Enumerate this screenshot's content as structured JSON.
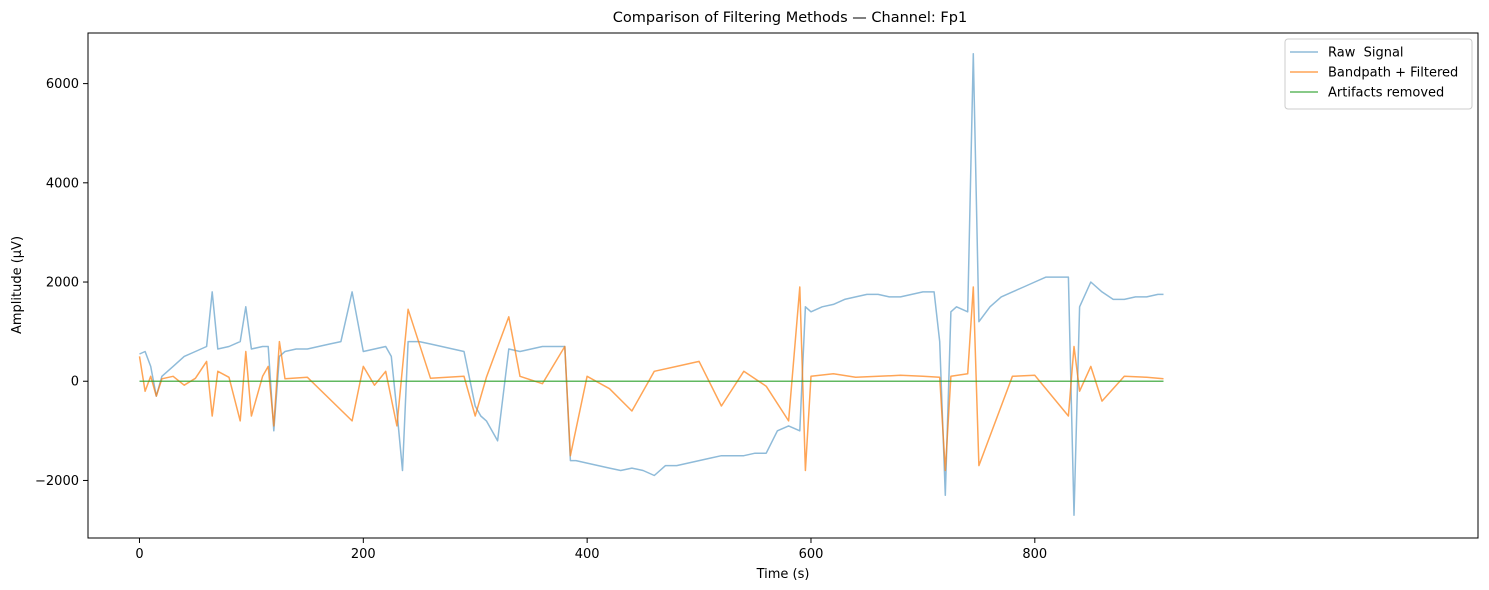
{
  "chart_data": {
    "type": "line",
    "title": "Comparison of Filtering Methods — Channel: Fp1",
    "xlabel": "Time (s)",
    "ylabel": "Amplitude (µV)",
    "xlim": [
      -46,
      1196
    ],
    "ylim": [
      -3160,
      7020
    ],
    "xticks": [
      0,
      200,
      400,
      600,
      800
    ],
    "xtick_labels": [
      "0",
      "200",
      "400",
      "600",
      "800"
    ],
    "yticks": [
      -2000,
      0,
      2000,
      4000,
      6000
    ],
    "ytick_labels": [
      "−2000",
      "0",
      "2000",
      "4000",
      "6000"
    ],
    "grid": false,
    "legend_position": "top-right",
    "series": [
      {
        "name": "Raw  Signal",
        "color": "#1f77b4",
        "alpha": 0.5,
        "x": [
          0,
          5,
          10,
          15,
          20,
          30,
          40,
          50,
          60,
          65,
          70,
          80,
          90,
          95,
          100,
          110,
          115,
          120,
          125,
          130,
          140,
          150,
          160,
          170,
          180,
          190,
          200,
          210,
          220,
          225,
          230,
          235,
          240,
          250,
          260,
          270,
          280,
          290,
          300,
          305,
          310,
          320,
          330,
          340,
          350,
          360,
          370,
          380,
          385,
          390,
          400,
          410,
          420,
          430,
          440,
          450,
          460,
          470,
          480,
          490,
          500,
          510,
          520,
          530,
          540,
          550,
          560,
          570,
          580,
          590,
          595,
          600,
          610,
          620,
          630,
          640,
          650,
          660,
          670,
          680,
          690,
          700,
          710,
          715,
          720,
          725,
          730,
          740,
          745,
          750,
          760,
          770,
          780,
          790,
          800,
          810,
          820,
          830,
          835,
          840,
          850,
          860,
          870,
          880,
          890,
          900,
          910,
          915
        ],
        "y": [
          550,
          600,
          300,
          -300,
          100,
          300,
          500,
          600,
          700,
          1800,
          650,
          700,
          800,
          1500,
          650,
          700,
          700,
          -1000,
          500,
          600,
          650,
          650,
          700,
          750,
          800,
          1800,
          600,
          650,
          700,
          500,
          -600,
          -1800,
          800,
          800,
          750,
          700,
          650,
          600,
          -500,
          -700,
          -800,
          -1200,
          650,
          600,
          650,
          700,
          700,
          700,
          -1600,
          -1600,
          -1650,
          -1700,
          -1750,
          -1800,
          -1750,
          -1800,
          -1900,
          -1700,
          -1700,
          -1650,
          -1600,
          -1550,
          -1500,
          -1500,
          -1500,
          -1450,
          -1450,
          -1000,
          -900,
          -1000,
          1500,
          1400,
          1500,
          1550,
          1650,
          1700,
          1750,
          1750,
          1700,
          1700,
          1750,
          1800,
          1800,
          800,
          -2300,
          1400,
          1500,
          1400,
          6600,
          1200,
          1500,
          1700,
          1800,
          1900,
          2000,
          2100,
          2100,
          2100,
          -2700,
          1500,
          2000,
          1800,
          1650,
          1650,
          1700,
          1700,
          1750,
          1750
        ]
      },
      {
        "name": "Bandpath + Filtered",
        "color": "#ff7f0e",
        "alpha": 0.7,
        "x": [
          0,
          5,
          10,
          15,
          20,
          30,
          40,
          50,
          60,
          65,
          70,
          80,
          90,
          95,
          100,
          110,
          115,
          120,
          125,
          130,
          150,
          190,
          200,
          210,
          220,
          230,
          240,
          260,
          290,
          300,
          310,
          330,
          340,
          360,
          380,
          385,
          400,
          420,
          440,
          460,
          480,
          500,
          520,
          540,
          560,
          580,
          590,
          595,
          600,
          620,
          640,
          680,
          700,
          715,
          720,
          725,
          740,
          745,
          750,
          780,
          800,
          830,
          835,
          840,
          850,
          860,
          880,
          900,
          915
        ],
        "y": [
          500,
          -200,
          100,
          -300,
          50,
          100,
          -80,
          60,
          400,
          -700,
          200,
          80,
          -800,
          600,
          -700,
          100,
          300,
          -900,
          800,
          50,
          80,
          -800,
          300,
          -80,
          200,
          -900,
          1450,
          60,
          100,
          -700,
          80,
          1300,
          100,
          -50,
          700,
          -1500,
          100,
          -150,
          -600,
          200,
          300,
          400,
          -500,
          200,
          -100,
          -800,
          1900,
          -1800,
          100,
          150,
          80,
          120,
          100,
          80,
          -1800,
          100,
          150,
          1900,
          -1700,
          100,
          120,
          -700,
          700,
          -200,
          300,
          -400,
          100,
          80,
          50
        ]
      },
      {
        "name": "Artifacts removed",
        "color": "#2ca02c",
        "alpha": 0.75,
        "x": [
          0,
          100,
          200,
          300,
          400,
          500,
          600,
          700,
          800,
          915
        ],
        "y": [
          0,
          0,
          0,
          0,
          0,
          0,
          0,
          0,
          0,
          0
        ]
      }
    ]
  }
}
